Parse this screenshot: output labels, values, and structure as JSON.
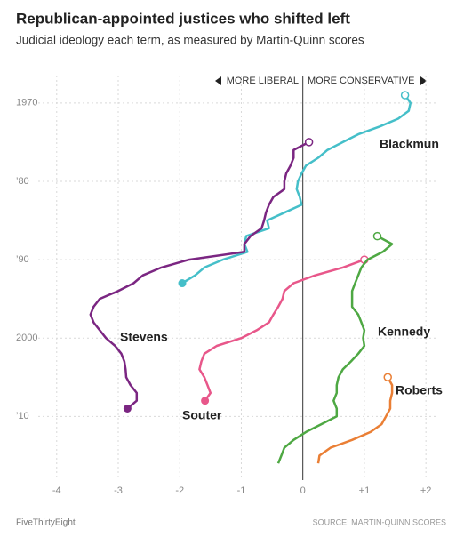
{
  "chart_data": {
    "type": "line",
    "title": "Republican-appointed justices who shifted left",
    "subtitle": "Judicial ideology each term, as measured by Martin-Quinn scores",
    "left_label": "MORE LIBERAL",
    "right_label": "MORE CONSERVATIVE",
    "credit": "FiveThirtyEight",
    "source": "SOURCE: MARTIN-QUINN SCORES",
    "xlim": [
      -4.3,
      2.2
    ],
    "xticks": [
      -4,
      -3,
      -2,
      -1,
      0,
      {
        "value": 1,
        "label": "+1"
      },
      {
        "value": 2,
        "label": "+2"
      }
    ],
    "ylim": [
      1966.5,
      2017
    ],
    "y_reversed": true,
    "yticks": [
      1970,
      {
        "value": 1980,
        "label": "’80"
      },
      {
        "value": 1990,
        "label": "’90"
      },
      2000,
      {
        "value": 2010,
        "label": "’10"
      }
    ],
    "grid": true,
    "series": [
      {
        "name": "Blackmun",
        "color": "#45bfc9",
        "end_marker": true,
        "x": [
          1969,
          1970,
          1971,
          1972,
          1973,
          1974,
          1975,
          1976,
          1977,
          1978,
          1979,
          1980,
          1981,
          1982,
          1983,
          1984,
          1985,
          1986,
          1987,
          1988,
          1989,
          1990,
          1991,
          1992,
          1993
        ],
        "values": [
          1.66,
          1.75,
          1.72,
          1.55,
          1.25,
          0.9,
          0.65,
          0.4,
          0.25,
          0.05,
          -0.02,
          -0.08,
          -0.1,
          -0.05,
          -0.02,
          -0.3,
          -0.58,
          -0.55,
          -0.92,
          -0.95,
          -0.9,
          -1.3,
          -1.6,
          -1.75,
          -1.96
        ]
      },
      {
        "name": "Stevens",
        "color": "#7b2682",
        "end_marker": true,
        "x": [
          1975,
          1976,
          1977,
          1978,
          1979,
          1980,
          1981,
          1982,
          1983,
          1984,
          1985,
          1986,
          1987,
          1988,
          1989,
          1990,
          1991,
          1992,
          1993,
          1994,
          1995,
          1996,
          1997,
          1998,
          1999,
          2000,
          2001,
          2002,
          2003,
          2004,
          2005,
          2006,
          2007,
          2008,
          2009
        ],
        "values": [
          0.1,
          -0.15,
          -0.15,
          -0.2,
          -0.27,
          -0.3,
          -0.3,
          -0.48,
          -0.55,
          -0.6,
          -0.63,
          -0.67,
          -0.85,
          -0.95,
          -0.95,
          -1.85,
          -2.3,
          -2.6,
          -2.75,
          -3.0,
          -3.3,
          -3.4,
          -3.45,
          -3.4,
          -3.3,
          -3.2,
          -3.05,
          -2.95,
          -2.9,
          -2.88,
          -2.87,
          -2.8,
          -2.7,
          -2.7,
          -2.85
        ]
      },
      {
        "name": "Souter",
        "color": "#e8578a",
        "end_marker": true,
        "x": [
          1990,
          1991,
          1992,
          1993,
          1994,
          1995,
          1996,
          1997,
          1998,
          1999,
          2000,
          2001,
          2002,
          2003,
          2004,
          2005,
          2006,
          2007,
          2008
        ],
        "values": [
          1.0,
          0.65,
          0.2,
          -0.15,
          -0.3,
          -0.33,
          -0.4,
          -0.48,
          -0.55,
          -0.75,
          -1.0,
          -1.4,
          -1.6,
          -1.65,
          -1.68,
          -1.6,
          -1.55,
          -1.5,
          -1.59
        ]
      },
      {
        "name": "Kennedy",
        "color": "#4ea843",
        "end_marker": false,
        "x": [
          1987,
          1988,
          1989,
          1990,
          1991,
          1992,
          1993,
          1994,
          1995,
          1996,
          1997,
          1998,
          1999,
          2000,
          2001,
          2002,
          2003,
          2004,
          2005,
          2006,
          2007,
          2008,
          2009,
          2010,
          2011,
          2012,
          2013,
          2014,
          2015,
          2016
        ],
        "values": [
          1.21,
          1.45,
          1.3,
          1.05,
          0.95,
          0.9,
          0.85,
          0.8,
          0.8,
          0.8,
          0.9,
          0.95,
          1.0,
          0.98,
          1.0,
          0.9,
          0.78,
          0.65,
          0.58,
          0.55,
          0.55,
          0.5,
          0.55,
          0.55,
          0.3,
          0.05,
          -0.15,
          -0.3,
          -0.35,
          -0.4
        ]
      },
      {
        "name": "Roberts",
        "color": "#ea7f35",
        "end_marker": false,
        "x": [
          2005,
          2006,
          2007,
          2008,
          2009,
          2010,
          2011,
          2012,
          2013,
          2014,
          2015,
          2016
        ],
        "values": [
          1.38,
          1.45,
          1.45,
          1.42,
          1.42,
          1.35,
          1.28,
          1.1,
          0.8,
          0.45,
          0.27,
          0.25
        ]
      }
    ]
  }
}
